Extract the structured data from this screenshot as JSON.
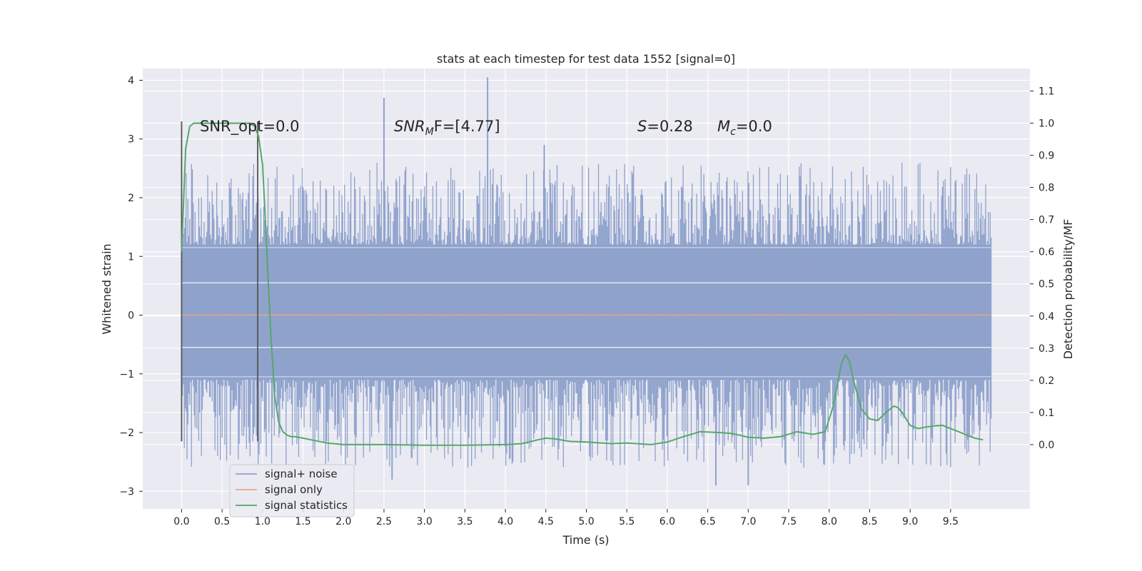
{
  "chart_data": {
    "type": "line",
    "title": "stats at each timestep for test data 1552 [signal=0]",
    "xlabel": "Time (s)",
    "ylabel": "Whitened strain",
    "y2label": "Detection probability/MF",
    "xlim": [
      -0.48,
      10.48
    ],
    "ylim": [
      -3.3,
      4.2
    ],
    "y2lim": [
      -0.2,
      1.17
    ],
    "x_ticks": [
      "0.0",
      "0.5",
      "1.0",
      "1.5",
      "2.0",
      "2.5",
      "3.0",
      "3.5",
      "4.0",
      "4.5",
      "5.0",
      "5.5",
      "6.0",
      "6.5",
      "7.0",
      "7.5",
      "8.0",
      "8.5",
      "9.0",
      "9.5"
    ],
    "y_ticks": [
      "4",
      "3",
      "2",
      "1",
      "0",
      "−1",
      "−2",
      "−3"
    ],
    "y2_ticks": [
      "1.1",
      "1.0",
      "0.9",
      "0.8",
      "0.7",
      "0.6",
      "0.5",
      "0.4",
      "0.3",
      "0.2",
      "0.1",
      "0.0"
    ],
    "annotations": {
      "snr_opt": "SNR_opt=0.0",
      "snr_mf_base": "SNR",
      "snr_mf_sub": "M",
      "snr_mf_rest": "F=[4.77]",
      "s_var": "S",
      "s_rest": "=0.28",
      "mc_var": "M",
      "mc_sub": "c",
      "mc_rest": "=0.0"
    },
    "legend": {
      "position": "lower-left",
      "entries": [
        "signal+ noise",
        "signal only",
        "signal statistics"
      ]
    },
    "series": [
      {
        "name": "signal+ noise",
        "color": "#8fa2cc",
        "x_range": [
          0,
          10
        ],
        "envelope": {
          "core": [
            -1.1,
            1.2
          ],
          "typical_peak": [
            -2.0,
            2.0
          ],
          "peaks": [
            {
              "x": 2.5,
              "y": 3.7
            },
            {
              "x": 3.78,
              "y": 4.05
            },
            {
              "x": 4.48,
              "y": 2.9
            },
            {
              "x": 6.6,
              "y": -2.9
            },
            {
              "x": 7.0,
              "y": -2.9
            },
            {
              "x": 2.6,
              "y": -2.8
            }
          ]
        }
      },
      {
        "name": "signal only",
        "color": "#e8a888",
        "x": [
          0,
          10
        ],
        "y": [
          0,
          0
        ]
      },
      {
        "name": "signal statistics",
        "color": "#55a868",
        "x": [
          0.0,
          0.05,
          0.1,
          0.15,
          0.2,
          0.3,
          0.4,
          0.5,
          0.6,
          0.7,
          0.8,
          0.85,
          0.9,
          0.95,
          1.0,
          1.05,
          1.1,
          1.15,
          1.2,
          1.25,
          1.3,
          1.35,
          1.4,
          1.5,
          1.6,
          1.8,
          2.0,
          2.5,
          3.0,
          3.5,
          4.0,
          4.2,
          4.4,
          4.5,
          4.6,
          4.8,
          5.0,
          5.3,
          5.5,
          5.8,
          6.0,
          6.2,
          6.4,
          6.6,
          6.8,
          7.0,
          7.2,
          7.4,
          7.6,
          7.8,
          7.95,
          8.05,
          8.15,
          8.2,
          8.25,
          8.3,
          8.4,
          8.5,
          8.6,
          8.7,
          8.8,
          8.85,
          8.9,
          9.0,
          9.1,
          9.2,
          9.3,
          9.4,
          9.5,
          9.6,
          9.7,
          9.8,
          9.9
        ],
        "y": [
          0.6,
          0.92,
          0.99,
          1.0,
          1.0,
          1.0,
          1.0,
          1.0,
          1.0,
          1.0,
          1.0,
          1.0,
          0.99,
          0.96,
          0.87,
          0.62,
          0.35,
          0.15,
          0.07,
          0.04,
          0.03,
          0.025,
          0.025,
          0.02,
          0.015,
          0.005,
          0.0,
          0.0,
          -0.002,
          -0.002,
          0.0,
          0.003,
          0.015,
          0.02,
          0.018,
          0.01,
          0.008,
          0.003,
          0.005,
          0.0,
          0.008,
          0.025,
          0.04,
          0.038,
          0.035,
          0.023,
          0.02,
          0.025,
          0.04,
          0.032,
          0.04,
          0.12,
          0.25,
          0.28,
          0.26,
          0.2,
          0.11,
          0.08,
          0.075,
          0.1,
          0.12,
          0.115,
          0.1,
          0.06,
          0.05,
          0.055,
          0.058,
          0.06,
          0.05,
          0.04,
          0.03,
          0.02,
          0.015
        ]
      }
    ],
    "vertical_lines": [
      {
        "x": 0.0,
        "y_range": [
          -2.15,
          3.3
        ],
        "color": "#555555"
      },
      {
        "x": 0.94,
        "y_range": [
          -2.15,
          3.3
        ],
        "color": "#555555"
      }
    ]
  }
}
